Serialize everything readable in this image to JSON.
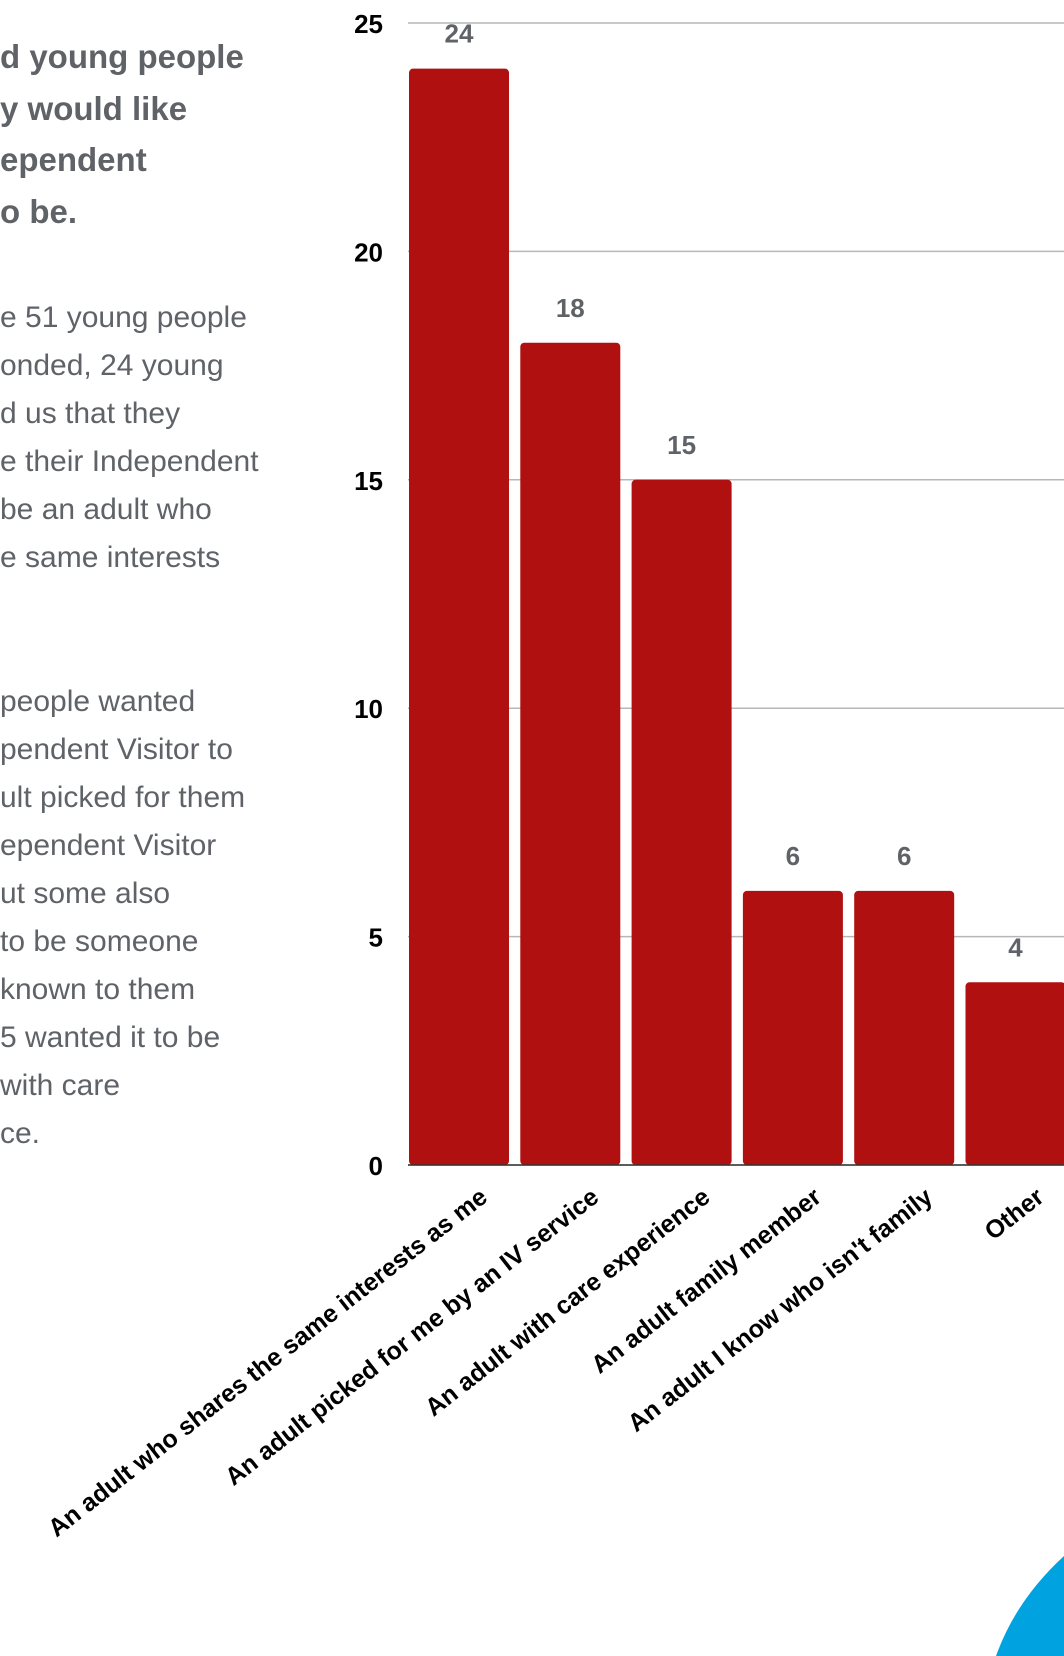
{
  "text_panel": {
    "heading_lines": [
      "d young people",
      "y would like",
      "ependent",
      "o be."
    ],
    "paragraph1_lines": [
      "e 51 young people",
      "onded, 24 young",
      "d us that they",
      "e their Independent",
      "be an adult who",
      "e same interests"
    ],
    "paragraph2_lines": [
      " people wanted",
      "pendent Visitor to",
      "ult picked for them",
      "ependent Visitor",
      "ut some also",
      "to be someone",
      "known to them",
      " 5 wanted it to be",
      "with care",
      "ce."
    ]
  },
  "chart_data": {
    "type": "bar",
    "categories": [
      "An adult who shares the same interests as me",
      "An adult picked for me by an IV service",
      "An adult with care experience",
      "An adult family member",
      "An adult I know who isn't family",
      "Other"
    ],
    "values": [
      24,
      18,
      15,
      6,
      6,
      4
    ],
    "data_labels": [
      "24",
      "18",
      "15",
      "6",
      "6",
      "4"
    ],
    "yticks": [
      0,
      5,
      10,
      15,
      20,
      25
    ],
    "ylim": [
      0,
      25
    ],
    "bar_color": "#b01010",
    "grid": true,
    "grid_color": "#b7b7b7"
  },
  "decor": {
    "corner_color": "#00a3e0"
  }
}
